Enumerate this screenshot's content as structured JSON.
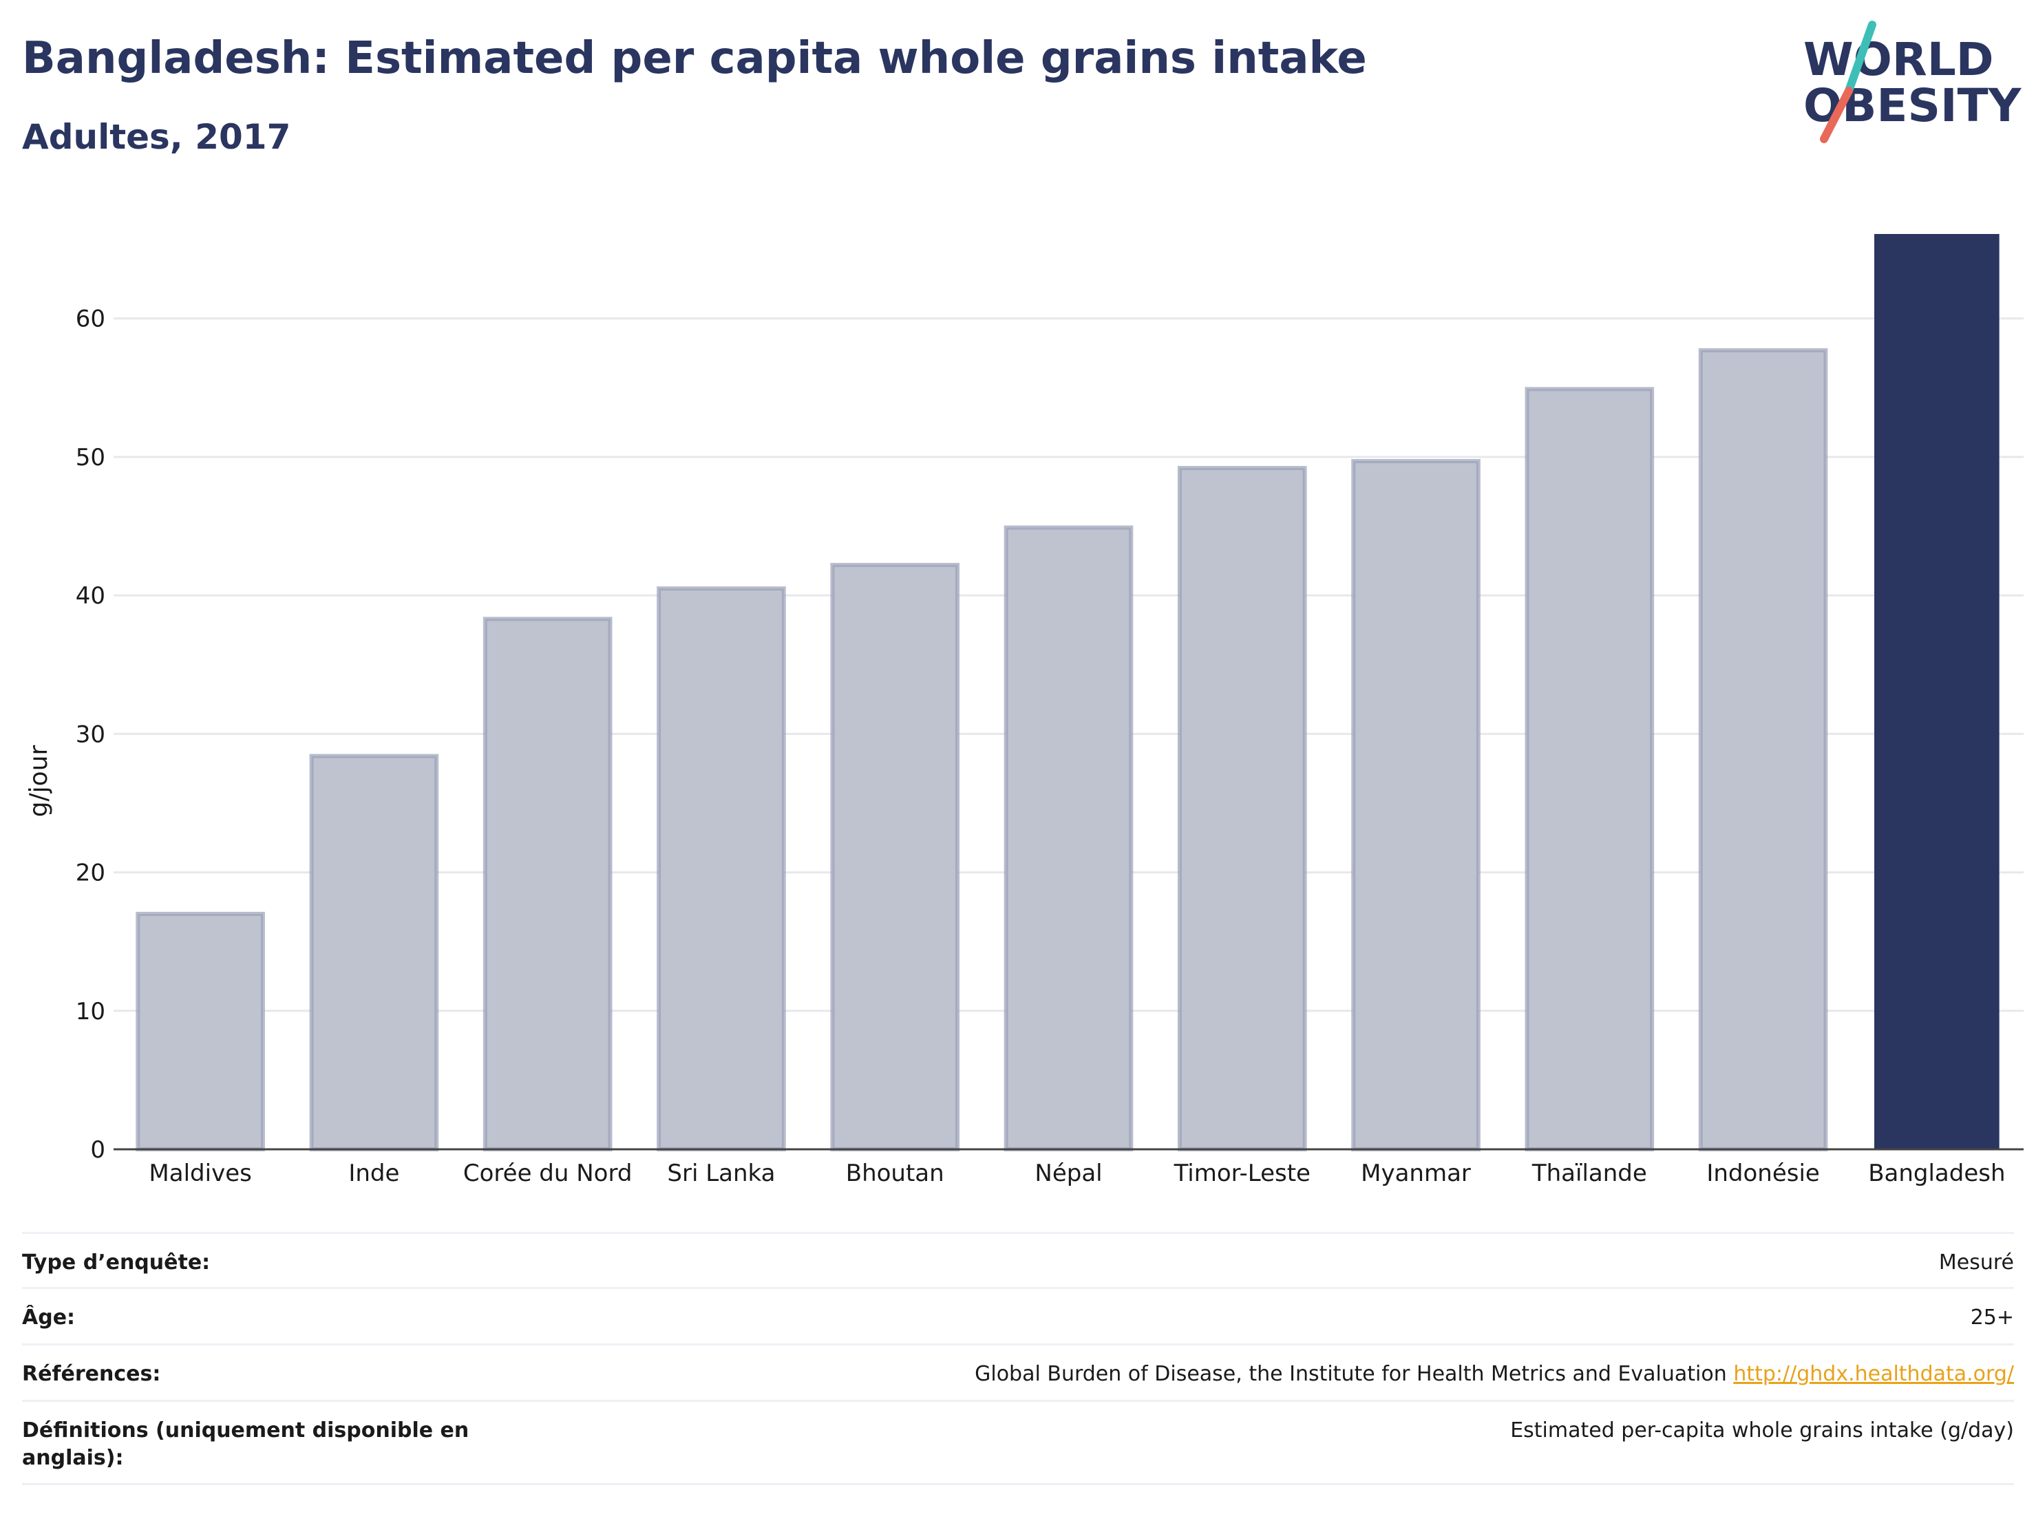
{
  "header": {
    "title": "Bangladesh: Estimated per capita whole grains intake",
    "subtitle": "Adultes, 2017"
  },
  "logo": {
    "line1": "WORLD",
    "line2": "OBESITY",
    "slash_top_color": "#3dbfb8",
    "slash_bottom_color": "#e8685a",
    "text_color": "#2a3560"
  },
  "colors": {
    "bar_default_fill": "#bfc3d0",
    "bar_default_stroke": "#9aa0b6",
    "bar_highlight_fill": "#2a3560",
    "text_dark": "#2a3560",
    "link": "#e8a21a"
  },
  "chart_data": {
    "type": "bar",
    "title": "Bangladesh: Estimated per capita whole grains intake",
    "subtitle": "Adultes, 2017",
    "xlabel": "",
    "ylabel": "g/jour",
    "categories": [
      "Maldives",
      "Inde",
      "Corée du Nord",
      "Sri Lanka",
      "Bhoutan",
      "Népal",
      "Timor-Leste",
      "Myanmar",
      "Thaïlande",
      "Indonésie",
      "Bangladesh"
    ],
    "values": [
      17,
      28.4,
      38.3,
      40.5,
      42.2,
      44.9,
      49.2,
      49.7,
      54.9,
      57.7,
      66.1
    ],
    "highlight": "Bangladesh",
    "ylim": [
      0,
      66.1
    ],
    "yticks": [
      0,
      10,
      20,
      30,
      40,
      50,
      60
    ],
    "grid": true,
    "legend": "none"
  },
  "info": {
    "rows": [
      {
        "label": "Type d’enquête:",
        "value": "Mesuré"
      },
      {
        "label": "Âge:",
        "value": "25+"
      },
      {
        "label": "Références:",
        "value": "Global Burden of Disease, the Institute for Health Metrics and Evaluation",
        "link": "http://ghdx.healthdata.org/"
      },
      {
        "label": "Définitions (uniquement disponible en anglais):",
        "value": "Estimated per-capita whole grains intake (g/day)"
      }
    ]
  }
}
